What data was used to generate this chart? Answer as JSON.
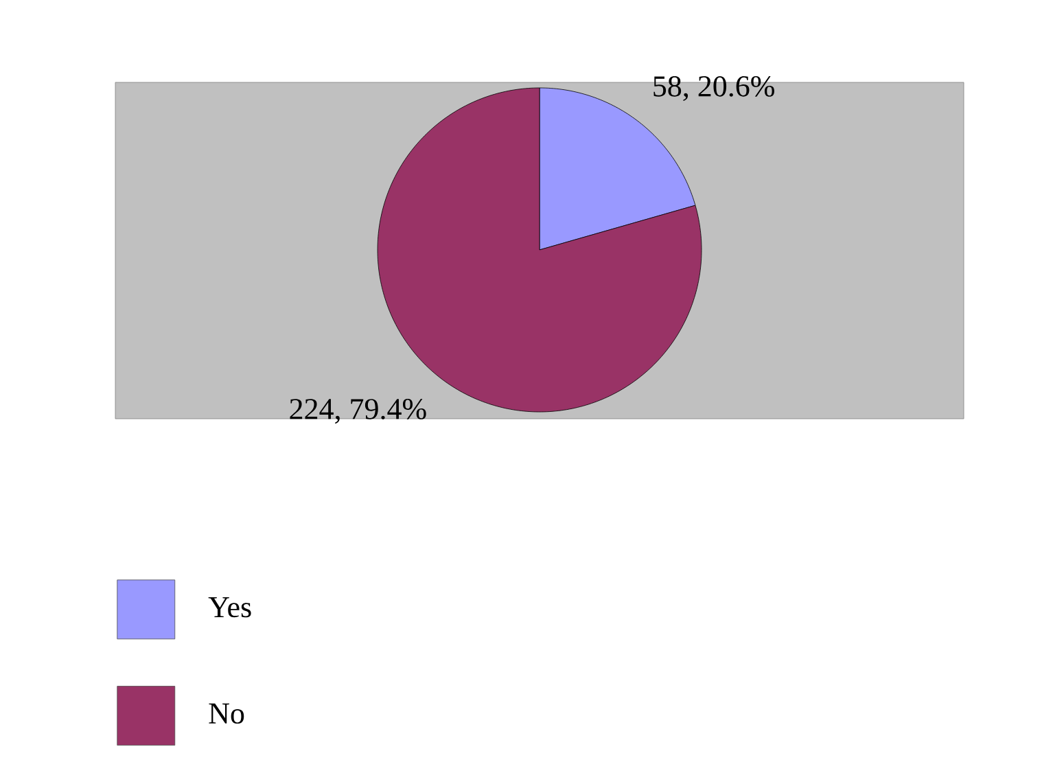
{
  "chart_data": {
    "type": "pie",
    "categories": [
      "Yes",
      "No"
    ],
    "values": [
      58,
      224
    ],
    "colors": [
      "#9999ff",
      "#993366"
    ],
    "value_labels": [
      "58, 20.6%",
      "224, 79.4%"
    ],
    "legend": "bottom left"
  }
}
